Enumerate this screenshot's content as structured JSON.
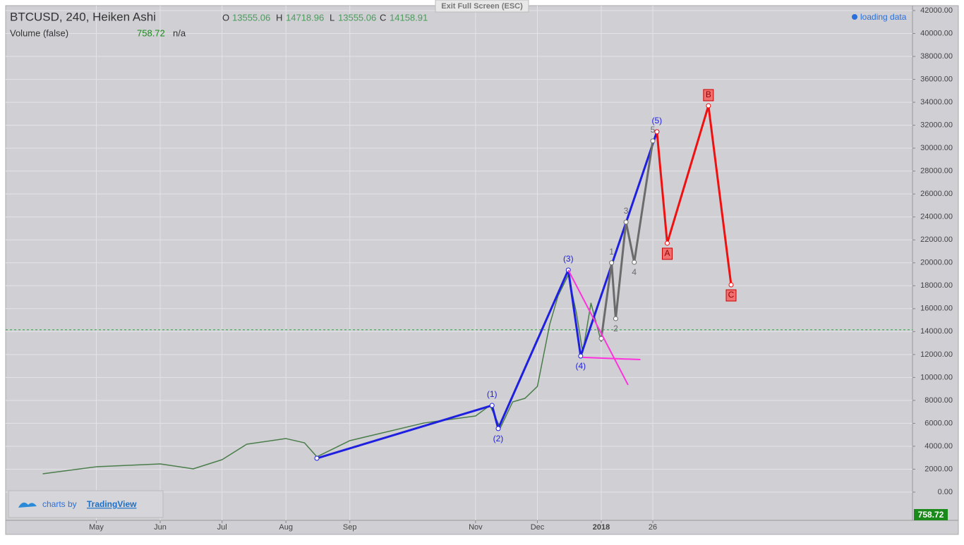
{
  "header": {
    "symbol": "BTCUSD, 240, Heiken Ashi",
    "o_label": "O",
    "open": 13555.06,
    "h_label": "H",
    "high": 14718.96,
    "l_label": "L",
    "low": 13555.06,
    "c_label": "C",
    "close": 14158.91,
    "volume_label": "Volume (false)",
    "volume": 758.72,
    "volume_ma": "n/a",
    "loading": "loading data",
    "exit": "Exit Full Screen (ESC)",
    "credit": "charts by",
    "brand": "TradingView"
  },
  "chart_data": {
    "type": "line",
    "xlim": [
      77,
      517
    ],
    "xticks": [
      {
        "value": 121,
        "label": "May"
      },
      {
        "value": 152,
        "label": "Jun"
      },
      {
        "value": 182,
        "label": "Jul"
      },
      {
        "value": 213,
        "label": "Aug"
      },
      {
        "value": 244,
        "label": "Sep"
      },
      {
        "value": 305,
        "label": "Nov"
      },
      {
        "value": 335,
        "label": "Dec"
      },
      {
        "value": 366,
        "label": "2018"
      },
      {
        "value": 391,
        "label": "26"
      }
    ],
    "ylim": [
      -2460,
      42430
    ],
    "yticks": [
      {
        "value": 0,
        "label": "0.00"
      },
      {
        "value": 2000,
        "label": "2000.00"
      },
      {
        "value": 4000,
        "label": "4000.00"
      },
      {
        "value": 6000,
        "label": "6000.00"
      },
      {
        "value": 8000,
        "label": "8000.00"
      },
      {
        "value": 10000,
        "label": "10000.00"
      },
      {
        "value": 12000,
        "label": "12000.00"
      },
      {
        "value": 14000,
        "label": "14000.00"
      },
      {
        "value": 16000,
        "label": "16000.00"
      },
      {
        "value": 18000,
        "label": "18000.00"
      },
      {
        "value": 20000,
        "label": "20000.00"
      },
      {
        "value": 22000,
        "label": "22000.00"
      },
      {
        "value": 24000,
        "label": "24000.00"
      },
      {
        "value": 26000,
        "label": "26000.00"
      },
      {
        "value": 28000,
        "label": "28000.00"
      },
      {
        "value": 30000,
        "label": "30000.00"
      },
      {
        "value": 32000,
        "label": "32000.00"
      },
      {
        "value": 34000,
        "label": "34000.00"
      },
      {
        "value": 36000,
        "label": "36000.00"
      },
      {
        "value": 38000,
        "label": "38000.00"
      },
      {
        "value": 40000,
        "label": "40000.00"
      },
      {
        "value": 42000,
        "label": "42000.00"
      }
    ],
    "grid": true,
    "series": [
      {
        "color": "#4a7d4a",
        "width": 1.5,
        "x": [
          95,
          121,
          152,
          168,
          182,
          194,
          213,
          222,
          228,
          244,
          280,
          305,
          312,
          317,
          323,
          329,
          335,
          341,
          345,
          350,
          354,
          357,
          361,
          366
        ],
        "values": [
          1600,
          2210,
          2460,
          2030,
          2830,
          4180,
          4670,
          4300,
          3080,
          4490,
          6030,
          6640,
          7560,
          5600,
          7870,
          8180,
          9220,
          14640,
          17100,
          18940,
          15560,
          12180,
          16480,
          13100
        ]
      },
      {
        "color": "#1f1fe0",
        "width": 3,
        "x": [
          228,
          313,
          316,
          350,
          356,
          393
        ],
        "values": [
          2950,
          7560,
          5540,
          19370,
          11870,
          31430
        ],
        "labels": [
          null,
          "(1)",
          "(2)",
          "(3)",
          "(4)",
          "(5)"
        ]
      },
      {
        "color": "#6b6b6b",
        "width": 3,
        "x": [
          366,
          371,
          373,
          378,
          382,
          391
        ],
        "values": [
          13400,
          20000,
          15130,
          23550,
          20050,
          30630
        ],
        "labels": [
          null,
          "1",
          "2",
          "3",
          "4",
          "5"
        ]
      },
      {
        "color": "#f01010",
        "width": 3,
        "x": [
          393,
          398,
          418,
          429
        ],
        "values": [
          31430,
          21710,
          33700,
          18080
        ],
        "labels": [
          null,
          "A",
          "B",
          "C"
        ],
        "boxed": true
      },
      {
        "color": "#ff33dd",
        "width": 2,
        "x": [
          350,
          379
        ],
        "values": [
          19370,
          9350
        ]
      },
      {
        "color": "#ff33dd",
        "width": 2,
        "x": [
          357,
          385
        ],
        "values": [
          11750,
          11560
        ]
      }
    ]
  }
}
